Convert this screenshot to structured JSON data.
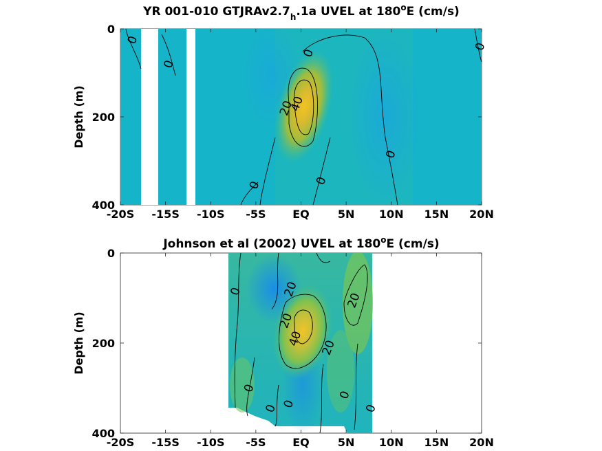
{
  "chart_data": [
    {
      "type": "heatmap",
      "title_main": "YR 001-010 GTJRAv2.7",
      "title_sub": "h",
      "title_mid": ".1a UVEL at 180",
      "title_sup": "o",
      "title_end": "E (cm/s)",
      "ylabel": "Depth (m)",
      "xlim": [
        -20,
        20
      ],
      "ylim": [
        400,
        0
      ],
      "x_ticks": [
        -20,
        -15,
        -10,
        -5,
        0,
        5,
        10,
        15,
        20
      ],
      "x_tick_labels": [
        "-20S",
        "-15S",
        "-10S",
        "-5S",
        "EQ",
        "5N",
        "10N",
        "15N",
        "20N"
      ],
      "y_ticks": [
        0,
        200,
        400
      ],
      "y_tick_labels": [
        "0",
        "200",
        "400"
      ],
      "contour_levels": [
        0,
        20,
        40
      ],
      "core": {
        "lat": 0.5,
        "depth": 150,
        "max_cmps": 50
      },
      "contour_labels": [
        {
          "text": "0",
          "x": -18.7,
          "y": 25
        },
        {
          "text": "0",
          "x": -14.7,
          "y": 80
        },
        {
          "text": "0",
          "x": 0.8,
          "y": 55
        },
        {
          "text": "20",
          "x": -1.7,
          "y": 180
        },
        {
          "text": "40",
          "x": -0.5,
          "y": 170
        },
        {
          "text": "0",
          "x": 9.9,
          "y": 285
        },
        {
          "text": "0",
          "x": 2.2,
          "y": 345
        },
        {
          "text": "0",
          "x": -5.2,
          "y": 355
        },
        {
          "text": "0",
          "x": 19.8,
          "y": 40
        }
      ]
    },
    {
      "type": "heatmap",
      "title_main": "Johnson et al (2002) UVEL at 180",
      "title_sup": "o",
      "title_end": "E (cm/s)",
      "ylabel": "Depth (m)",
      "xlim": [
        -20,
        20
      ],
      "ylim": [
        400,
        0
      ],
      "x_ticks": [
        -20,
        -15,
        -10,
        -5,
        0,
        5,
        10,
        15,
        20
      ],
      "x_tick_labels": [
        "-20S",
        "-15S",
        "-10S",
        "-5S",
        "EQ",
        "5N",
        "10N",
        "15N",
        "20N"
      ],
      "y_ticks": [
        0,
        200,
        400
      ],
      "y_tick_labels": [
        "0",
        "200",
        "400"
      ],
      "data_extent_lat": [
        -8,
        8
      ],
      "contour_levels": [
        0,
        20,
        40
      ],
      "core": {
        "lat": 0.5,
        "depth": 170,
        "max_cmps": 50
      },
      "contour_labels": [
        {
          "text": "0",
          "x": -7.3,
          "y": 85
        },
        {
          "text": "20",
          "x": -1.2,
          "y": 80
        },
        {
          "text": "20",
          "x": 5.8,
          "y": 105
        },
        {
          "text": "20",
          "x": -1.7,
          "y": 150
        },
        {
          "text": "40",
          "x": -0.7,
          "y": 190
        },
        {
          "text": "20",
          "x": 3.0,
          "y": 210
        },
        {
          "text": "0",
          "x": -5.8,
          "y": 300
        },
        {
          "text": "0",
          "x": -1.4,
          "y": 335
        },
        {
          "text": "0",
          "x": 4.8,
          "y": 315
        },
        {
          "text": "0",
          "x": -3.4,
          "y": 345
        },
        {
          "text": "0",
          "x": 7.7,
          "y": 345
        }
      ]
    }
  ]
}
